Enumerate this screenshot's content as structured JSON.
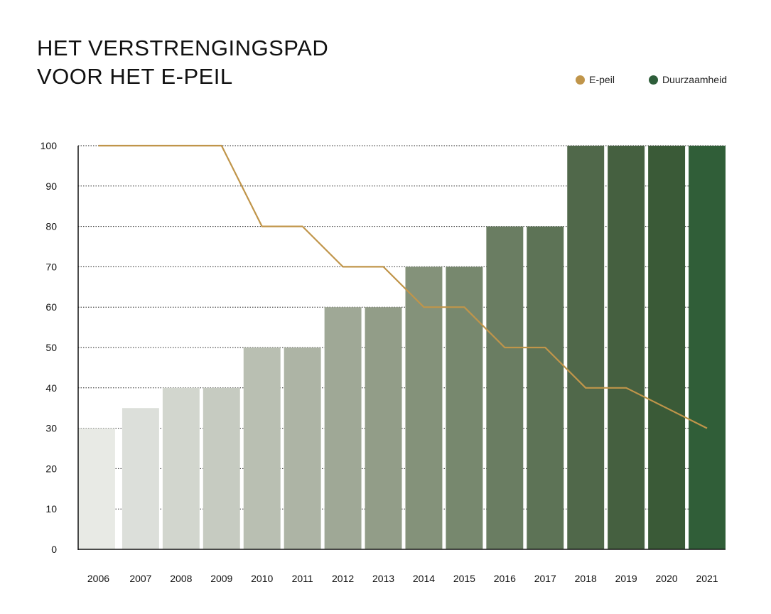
{
  "header": {
    "title_line1": "HET VERSTRENGINGSPAD",
    "title_line2": "VOOR HET E-PEIL"
  },
  "legend": [
    {
      "label": "E-peil",
      "color": "#C0954A"
    },
    {
      "label": "Duurzaamheid",
      "color": "#2E5E3A"
    }
  ],
  "chart_data": {
    "type": "bar",
    "title": "HET VERSTRENGINGSPAD VOOR HET E-PEIL",
    "categories": [
      "2006",
      "2007",
      "2008",
      "2009",
      "2010",
      "2011",
      "2012",
      "2013",
      "2014",
      "2015",
      "2016",
      "2017",
      "2018",
      "2019",
      "2020",
      "2021"
    ],
    "ylim": [
      0,
      100
    ],
    "yticks": [
      "0",
      "10",
      "20",
      "30",
      "40",
      "50",
      "60",
      "70",
      "80",
      "90",
      "100"
    ],
    "grid": "horizontal dotted",
    "legend_position": "top-right",
    "series": [
      {
        "name": "Duurzaamheid",
        "type": "bar",
        "values": [
          30,
          35,
          40,
          40,
          50,
          50,
          60,
          60,
          70,
          70,
          80,
          80,
          100,
          100,
          100,
          100
        ],
        "colors": [
          "#E8EAE5",
          "#DCDFDA",
          "#D2D6CE",
          "#C6CBC1",
          "#B9BFB2",
          "#ADB4A5",
          "#9FA896",
          "#929D88",
          "#84927A",
          "#77886E",
          "#6A7D62",
          "#5D7356",
          "#50684A",
          "#456040",
          "#3A5A37",
          "#305E38"
        ]
      },
      {
        "name": "E-peil",
        "type": "line",
        "color": "#C0954A",
        "values": [
          100,
          100,
          100,
          100,
          80,
          80,
          70,
          70,
          60,
          60,
          50,
          50,
          40,
          40,
          35,
          30
        ]
      }
    ]
  }
}
